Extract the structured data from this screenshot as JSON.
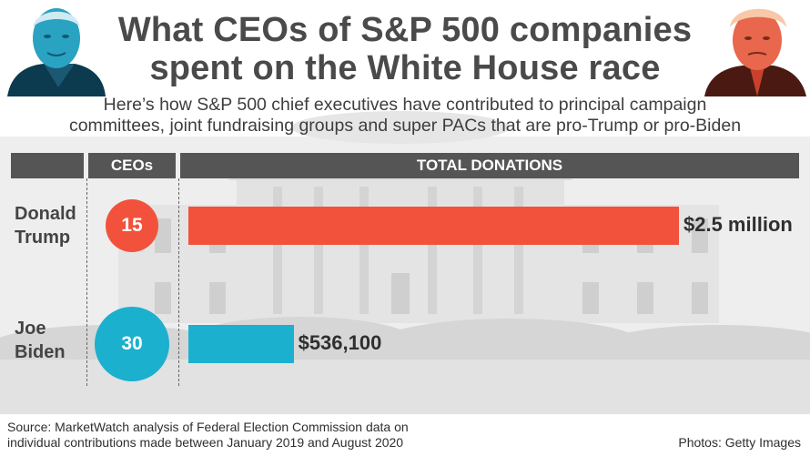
{
  "title_line1": "What CEOs of S&P 500 companies",
  "title_line2": "spent on the White House race",
  "subtitle_line1": "Here’s how S&P 500 chief executives have contributed to principal campaign",
  "subtitle_line2": "committees, joint fundraising groups and super PACs that are pro-Trump or pro-Biden",
  "columns": {
    "ceos": "CEOs",
    "donations": "TOTAL DONATIONS"
  },
  "source_line1": "Source: MarketWatch analysis of Federal Election Commission data on",
  "source_line2": "individual contributions made between January 2019 and August 2020",
  "photo_credit": "Photos: Getty Images",
  "colors": {
    "trump": "#f2523b",
    "biden": "#1bb0ce",
    "header": "#555555"
  },
  "chart_data": {
    "type": "bar",
    "orientation": "horizontal",
    "title": "What CEOs of S&P 500 companies spent on the White House race",
    "categories": [
      "Donald Trump",
      "Joe Biden"
    ],
    "name_lines": [
      [
        "Donald",
        "Trump"
      ],
      [
        "Joe",
        "Biden"
      ]
    ],
    "ceo_counts": [
      15,
      30
    ],
    "values": [
      2500000,
      536100
    ],
    "value_labels": [
      "$2.5 million",
      "$536,100"
    ],
    "xlabel": "TOTAL DONATIONS",
    "xlim": [
      0,
      2500000
    ],
    "grid": false,
    "legend": "none"
  }
}
